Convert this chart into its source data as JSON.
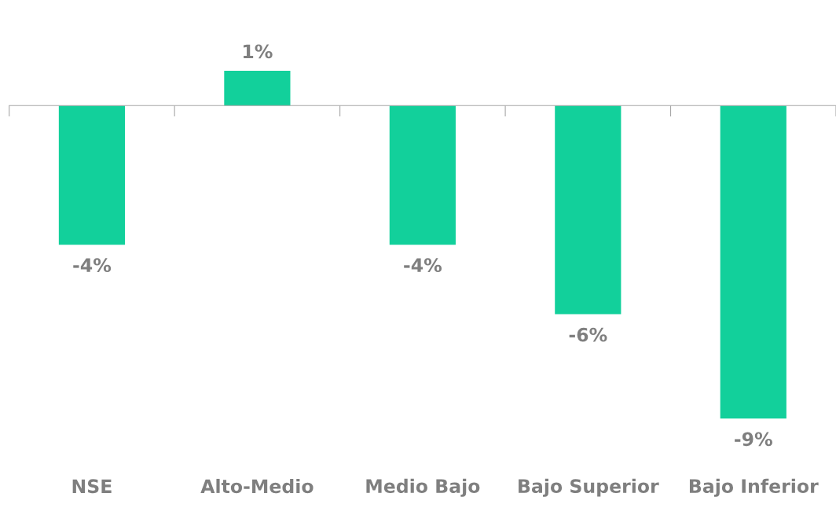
{
  "chart_data": {
    "type": "bar",
    "categories": [
      "NSE",
      "Alto-Medio",
      "Medio Bajo",
      "Bajo Superior",
      "Bajo Inferior"
    ],
    "values": [
      -4,
      1,
      -4,
      -6,
      -9
    ],
    "value_labels": [
      "-4%",
      "1%",
      "-4%",
      "-6%",
      "-9%"
    ],
    "color": "#12d09b",
    "grid": false,
    "legend": false
  }
}
